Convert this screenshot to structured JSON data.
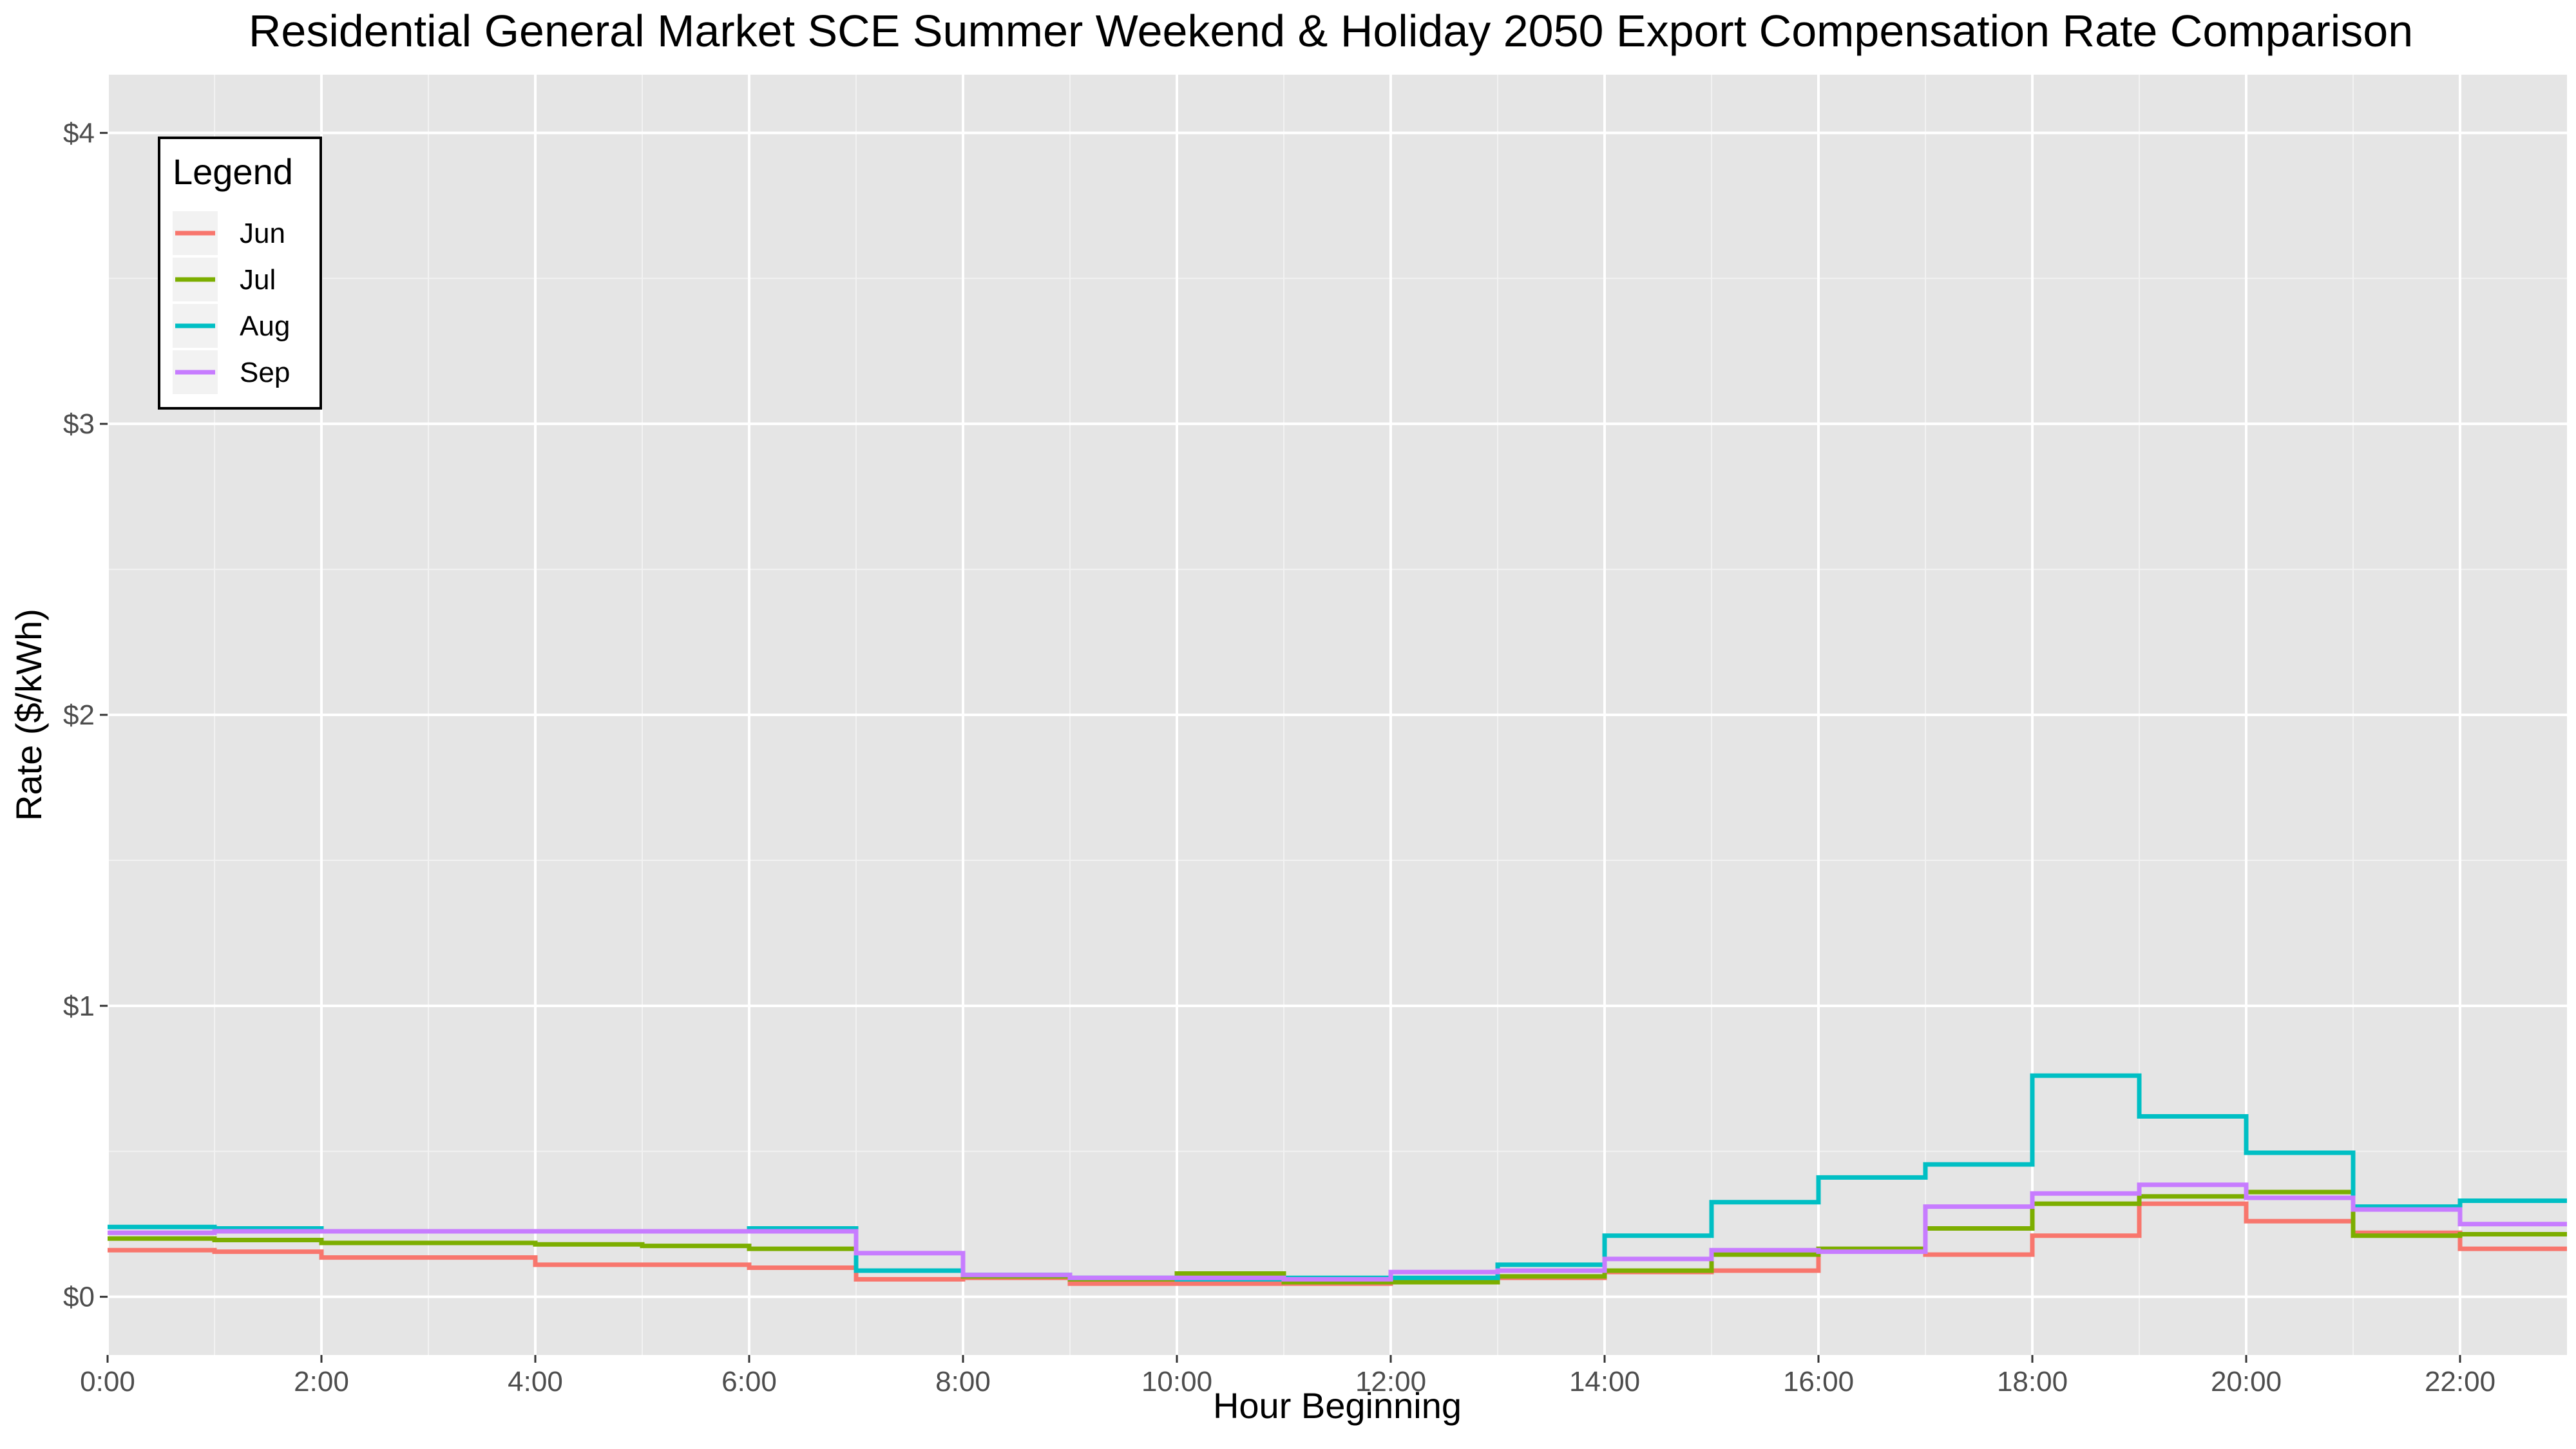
{
  "chart_data": {
    "type": "line",
    "step": true,
    "title": "Residential General Market SCE Summer Weekend & Holiday 2050 Export Compensation Rate Comparison",
    "xlabel": "Hour Beginning",
    "ylabel": "Rate ($/kWh)",
    "x": [
      0,
      1,
      2,
      3,
      4,
      5,
      6,
      7,
      8,
      9,
      10,
      11,
      12,
      13,
      14,
      15,
      16,
      17,
      18,
      19,
      20,
      21,
      22,
      23
    ],
    "x_tick_labels": [
      "0:00",
      "2:00",
      "4:00",
      "6:00",
      "8:00",
      "10:00",
      "12:00",
      "14:00",
      "16:00",
      "18:00",
      "20:00",
      "22:00"
    ],
    "x_ticks": [
      0,
      2,
      4,
      6,
      8,
      10,
      12,
      14,
      16,
      18,
      20,
      22
    ],
    "xlim": [
      0,
      23
    ],
    "y_ticks": [
      0,
      1,
      2,
      3,
      4
    ],
    "y_tick_labels": [
      "$0",
      "$1",
      "$2",
      "$3",
      "$4"
    ],
    "ylim": [
      -0.2,
      4.2
    ],
    "grid": true,
    "legend": {
      "title": "Legend",
      "placement": "top-left"
    },
    "series": [
      {
        "name": "Jun",
        "color": "#F8766D",
        "values": [
          0.16,
          0.155,
          0.135,
          0.135,
          0.11,
          0.11,
          0.1,
          0.06,
          0.065,
          0.045,
          0.045,
          0.045,
          0.05,
          0.065,
          0.085,
          0.09,
          0.16,
          0.145,
          0.21,
          0.32,
          0.26,
          0.22,
          0.165,
          0.165
        ]
      },
      {
        "name": "Jul",
        "color": "#7CAE00",
        "values": [
          0.2,
          0.195,
          0.185,
          0.185,
          0.18,
          0.175,
          0.165,
          0.09,
          0.07,
          0.06,
          0.08,
          0.05,
          0.05,
          0.07,
          0.09,
          0.145,
          0.165,
          0.235,
          0.32,
          0.345,
          0.36,
          0.21,
          0.215,
          0.215
        ]
      },
      {
        "name": "Aug",
        "color": "#00BFC4",
        "values": [
          0.24,
          0.235,
          0.225,
          0.225,
          0.225,
          0.225,
          0.235,
          0.09,
          0.075,
          0.065,
          0.06,
          0.065,
          0.065,
          0.11,
          0.21,
          0.325,
          0.41,
          0.455,
          0.76,
          0.62,
          0.495,
          0.31,
          0.33,
          0.33
        ]
      },
      {
        "name": "Sep",
        "color": "#C77CFF",
        "values": [
          0.22,
          0.225,
          0.225,
          0.225,
          0.225,
          0.225,
          0.225,
          0.15,
          0.075,
          0.065,
          0.065,
          0.06,
          0.085,
          0.09,
          0.13,
          0.16,
          0.155,
          0.31,
          0.355,
          0.385,
          0.34,
          0.3,
          0.25,
          0.25
        ]
      }
    ]
  }
}
